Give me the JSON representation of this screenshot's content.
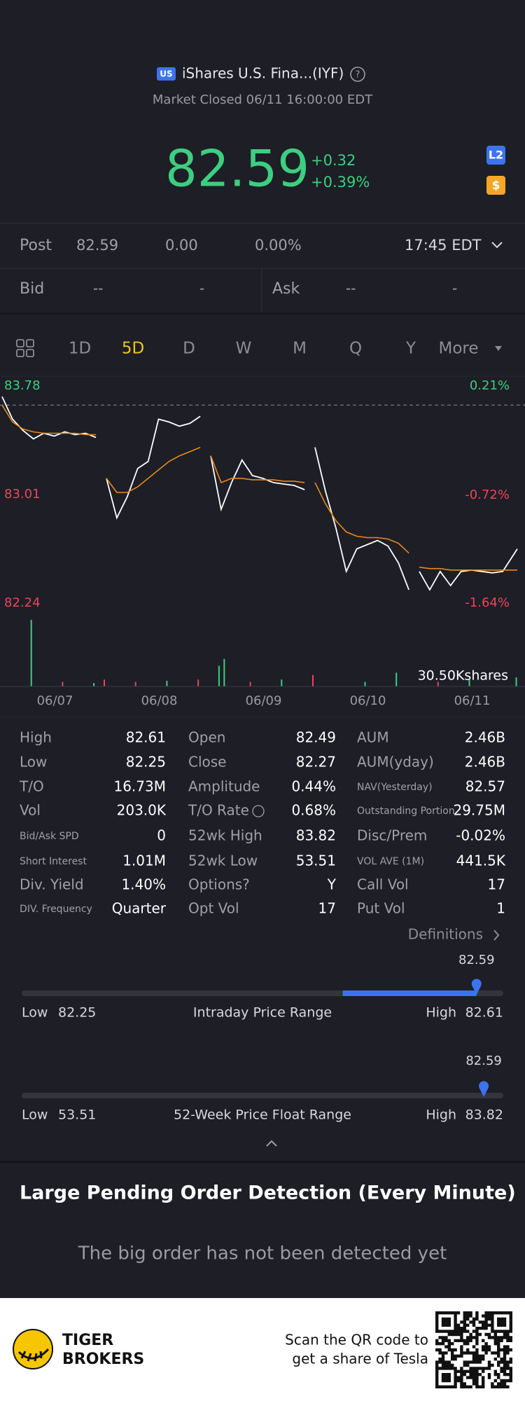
{
  "header": {
    "badge": "US",
    "title": "iShares U.S. Fina...(IYF)",
    "status": "Market Closed 06/11 16:00:00 EDT"
  },
  "quote": {
    "price": "82.59",
    "change": "+0.32",
    "change_pct": "+0.39%",
    "badges": [
      "L2",
      "$"
    ]
  },
  "post": {
    "label": "Post",
    "price": "82.59",
    "change": "0.00",
    "pct": "0.00%",
    "time": "17:45 EDT"
  },
  "bid_ask": {
    "bid_label": "Bid",
    "bid_price": "--",
    "bid_size": "-",
    "ask_label": "Ask",
    "ask_price": "--",
    "ask_size": "-"
  },
  "timeframes": {
    "items": [
      "1D",
      "5D",
      "D",
      "W",
      "M",
      "Q",
      "Y",
      "More"
    ],
    "active": 1
  },
  "chart_data": {
    "type": "line",
    "x": [
      0.02,
      0.12,
      0.22,
      0.32,
      0.42,
      0.52,
      0.62,
      0.72,
      0.82,
      0.92,
      0.97,
      1.02,
      1.12,
      1.22,
      1.32,
      1.42,
      1.52,
      1.62,
      1.72,
      1.82,
      1.92,
      1.97,
      2.02,
      2.12,
      2.22,
      2.32,
      2.42,
      2.52,
      2.62,
      2.72,
      2.82,
      2.92,
      2.97,
      3.02,
      3.12,
      3.22,
      3.32,
      3.42,
      3.52,
      3.62,
      3.72,
      3.82,
      3.92,
      3.97,
      4.02,
      4.12,
      4.22,
      4.32,
      4.42,
      4.52,
      4.62,
      4.72,
      4.82,
      4.96
    ],
    "series": [
      {
        "color": "#ffffff",
        "values": [
          83.66,
          83.5,
          83.42,
          83.36,
          83.4,
          83.38,
          83.41,
          83.39,
          83.4,
          83.37,
          null,
          83.08,
          82.8,
          82.95,
          83.15,
          83.2,
          83.5,
          83.48,
          83.45,
          83.47,
          83.52,
          null,
          83.24,
          82.86,
          83.05,
          83.21,
          83.1,
          83.08,
          83.05,
          83.04,
          83.03,
          83.0,
          null,
          83.3,
          82.99,
          82.73,
          82.42,
          82.58,
          82.61,
          82.64,
          82.6,
          82.48,
          82.29,
          null,
          82.42,
          82.29,
          82.42,
          82.32,
          82.42,
          82.43,
          82.42,
          82.41,
          82.42,
          82.58
        ]
      },
      {
        "color": "#e8891c",
        "values": [
          83.6,
          83.48,
          83.43,
          83.41,
          83.4,
          83.4,
          83.4,
          83.4,
          83.39,
          83.39,
          null,
          83.08,
          82.98,
          82.98,
          83.02,
          83.08,
          83.14,
          83.2,
          83.24,
          83.27,
          83.3,
          null,
          83.24,
          83.05,
          83.08,
          83.08,
          83.07,
          83.07,
          83.07,
          83.06,
          83.06,
          83.05,
          null,
          83.05,
          82.9,
          82.78,
          82.7,
          82.67,
          82.66,
          82.66,
          82.65,
          82.62,
          82.55,
          null,
          82.45,
          82.44,
          82.44,
          82.43,
          82.43,
          82.43,
          82.43,
          82.43,
          82.43,
          82.43
        ]
      }
    ],
    "xlim": [
      0,
      5
    ],
    "ylim": [
      82.24,
      83.78
    ],
    "yticks": [
      82.24,
      83.01,
      83.78
    ],
    "ytick_colors": [
      "#f0435a",
      "#f0435a",
      "#3ccf80"
    ],
    "y2lim": [
      -1.64,
      0.21
    ],
    "y2ticks": [
      {
        "value": -1.64,
        "label": "-1.64%"
      },
      {
        "value": -0.72,
        "label": "-0.72%"
      },
      {
        "value": 0.21,
        "label": "0.21%"
      }
    ],
    "reference": 83.6,
    "xticks": [
      {
        "value": 0.5,
        "label": "06/07"
      },
      {
        "value": 1.5,
        "label": "06/08"
      },
      {
        "value": 2.5,
        "label": "06/09"
      },
      {
        "value": 3.5,
        "label": "06/10"
      },
      {
        "value": 4.5,
        "label": "06/11"
      }
    ],
    "volume": {
      "label": "30.50Kshares",
      "ylim": [
        0,
        30.5
      ],
      "x": [
        0.3,
        0.6,
        0.9,
        1.0,
        1.3,
        1.6,
        1.9,
        2.1,
        2.15,
        2.4,
        2.7,
        3.0,
        3.5,
        3.8,
        4.2,
        4.5,
        4.95
      ],
      "values": [
        29,
        2,
        1.5,
        3,
        2,
        2.5,
        3,
        9,
        12,
        2,
        3,
        5,
        2,
        6,
        2,
        3,
        4
      ],
      "colors": [
        "#3ccf80",
        "#f0435a",
        "#3ccf80",
        "#f0435a",
        "#f0435a",
        "#3ccf80",
        "#f0435a",
        "#3ccf80",
        "#3ccf80",
        "#f0435a",
        "#3ccf80",
        "#f0435a",
        "#3ccf80",
        "#3ccf80",
        "#f0435a",
        "#3ccf80",
        "#3ccf80"
      ]
    }
  },
  "stats": {
    "rows": [
      [
        [
          "High",
          "82.61"
        ],
        [
          "Open",
          "82.49"
        ],
        [
          "AUM",
          "2.46B"
        ]
      ],
      [
        [
          "Low",
          "82.25"
        ],
        [
          "Close",
          "82.27"
        ],
        [
          "AUM(yday)",
          "2.46B"
        ]
      ],
      [
        [
          "T/O",
          "16.73M"
        ],
        [
          "Amplitude",
          "0.44%"
        ],
        [
          "NAV(Yesterday)",
          "82.57"
        ]
      ],
      [
        [
          "Vol",
          "203.0K"
        ],
        [
          "T/O Rate",
          "0.68%"
        ],
        [
          "Outstanding Portion",
          "29.75M"
        ]
      ],
      [
        [
          "Bid/Ask SPD",
          "0"
        ],
        [
          "52wk High",
          "83.82"
        ],
        [
          "Disc/Prem",
          "-0.02%"
        ]
      ],
      [
        [
          "Short Interest",
          "1.01M"
        ],
        [
          "52wk Low",
          "53.51"
        ],
        [
          "VOL AVE (1M)",
          "441.5K"
        ]
      ],
      [
        [
          "Div. Yield",
          "1.40%"
        ],
        [
          "Options?",
          "Y"
        ],
        [
          "Call Vol",
          "17"
        ]
      ],
      [
        [
          "DIV. Frequency",
          "Quarter"
        ],
        [
          "Opt Vol",
          "17"
        ],
        [
          "Put Vol",
          "1"
        ]
      ]
    ],
    "definitions": "Definitions"
  },
  "ranges": [
    {
      "title": "Intraday Price Range",
      "low_label": "Low",
      "low": 82.25,
      "high_label": "High",
      "high": 82.61,
      "current": 82.59,
      "fill_from": 82.49
    },
    {
      "title": "52-Week Price Float Range",
      "low_label": "Low",
      "low": 53.51,
      "high_label": "High",
      "high": 83.82,
      "current": 82.59
    }
  ],
  "pending": {
    "title": "Large Pending Order Detection (Every Minute)",
    "message": "The big order has not been detected yet"
  },
  "footer": {
    "brand": [
      "TIGER",
      "BROKERS"
    ],
    "cta": [
      "Scan the QR code to",
      "get a share of Tesla"
    ]
  }
}
